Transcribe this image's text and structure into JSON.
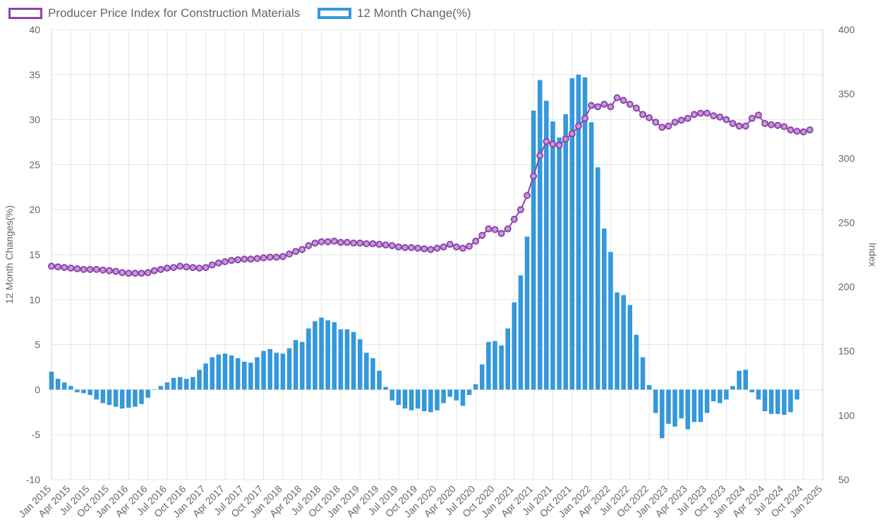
{
  "legend": {
    "line_label": "Producer Price Index for Construction Materials",
    "bar_label": "12 Month Change(%)"
  },
  "chart_data": {
    "type": "bar+line",
    "x_tick_labels": [
      "Jan 2015",
      "Apr 2015",
      "Jul 2015",
      "Oct 2015",
      "Jan 2016",
      "Apr 2016",
      "Jul 2016",
      "Oct 2016",
      "Jan 2017",
      "Apr 2017",
      "Jul 2017",
      "Oct 2017",
      "Jan 2018",
      "Apr 2018",
      "Jul 2018",
      "Oct 2018",
      "Jan 2019",
      "Apr 2019",
      "Jul 2019",
      "Oct 2019",
      "Jan 2020",
      "Apr 2020",
      "Jul 2020",
      "Oct 2020",
      "Jan 2021",
      "Apr 2021",
      "Jul 2021",
      "Oct 2021",
      "Jan 2022",
      "Apr 2022",
      "Jul 2022",
      "Oct 2022",
      "Jan 2023",
      "Apr 2023",
      "Jul 2023",
      "Oct 2023",
      "Jan 2024",
      "Apr 2024",
      "Jul 2024",
      "Oct 2024",
      "Jan 2025"
    ],
    "x_range": [
      "Jan 2015",
      "Jan 2025"
    ],
    "y_left": {
      "label": "12 Month Changes(%)",
      "range": [
        -10,
        40
      ],
      "ticks": [
        "-10",
        "-5",
        "0",
        "5",
        "10",
        "15",
        "20",
        "25",
        "30",
        "35",
        "40"
      ]
    },
    "y_right": {
      "label": "Index",
      "range": [
        50,
        400
      ],
      "ticks": [
        "50",
        "100",
        "150",
        "200",
        "250",
        "300",
        "350",
        "400"
      ]
    },
    "grid": true,
    "legend_position": "top-left",
    "series": [
      {
        "name": "Producer Price Index for Construction Materials",
        "type": "line",
        "axis": "right",
        "color": "#8e44ad",
        "values": [
          216,
          215.5,
          215,
          214.5,
          214,
          213.5,
          213.5,
          213.5,
          213,
          212.5,
          212,
          211,
          210.5,
          210.5,
          210.5,
          211,
          212.5,
          213.5,
          214.5,
          215,
          216,
          215.5,
          215,
          214.5,
          215,
          217,
          218.5,
          219.5,
          220.5,
          221,
          221.5,
          221.5,
          222,
          222.5,
          223,
          223,
          223.5,
          225.5,
          227.5,
          229,
          232,
          234,
          235,
          235,
          235.5,
          234.5,
          234.5,
          234,
          234,
          233.5,
          233.5,
          233,
          232.5,
          232,
          231,
          230.5,
          230.5,
          230,
          229.5,
          229,
          230,
          231,
          233,
          231,
          230,
          231.5,
          235.5,
          240,
          245,
          244.5,
          241.5,
          245,
          252.5,
          260,
          271,
          286,
          302,
          313,
          311,
          310,
          315,
          319,
          325,
          331,
          341,
          340,
          342,
          340,
          347,
          345,
          342,
          339,
          334,
          331.5,
          328,
          324,
          325,
          328,
          329.5,
          331,
          334,
          335,
          335,
          333,
          332,
          330,
          327,
          325,
          325,
          331,
          333.5,
          327,
          326,
          325.5,
          324.5,
          322,
          321,
          320.5,
          322
        ]
      },
      {
        "name": "12 Month Change(%)",
        "type": "bar",
        "axis": "left",
        "color": "#3498db",
        "values": [
          2,
          1.2,
          0.8,
          0.4,
          -0.3,
          -0.4,
          -0.6,
          -1.1,
          -1.5,
          -1.7,
          -1.9,
          -2.1,
          -2.0,
          -1.9,
          -1.6,
          -0.9,
          0,
          0.4,
          0.8,
          1.3,
          1.4,
          1.2,
          1.4,
          2.2,
          2.9,
          3.6,
          3.9,
          4.0,
          3.8,
          3.5,
          3.1,
          3.0,
          3.6,
          4.3,
          4.5,
          4.1,
          4.0,
          4.6,
          5.5,
          5.3,
          6.8,
          7.6,
          8.0,
          7.7,
          7.5,
          6.7,
          6.7,
          6.4,
          5.6,
          4.1,
          3.5,
          2.1,
          0.3,
          -1.2,
          -1.7,
          -2.1,
          -2.3,
          -2.1,
          -2.4,
          -2.5,
          -2.3,
          -1.5,
          -0.8,
          -1.2,
          -1.8,
          -0.6,
          0.6,
          2.8,
          5.3,
          5.4,
          4.9,
          6.8,
          9.7,
          12.7,
          17.0,
          31.0,
          34.4,
          32.1,
          29.8,
          28.0,
          30.6,
          34.6,
          35.0,
          34.7,
          29.7,
          24.7,
          17.9,
          15.3,
          10.8,
          10.5,
          9.4,
          6.1,
          3.6,
          0.5,
          -2.6,
          -5.4,
          -3.8,
          -4.1,
          -3.2,
          -4.4,
          -3.6,
          -3.6,
          -2.6,
          -1.3,
          -1.5,
          -1.1,
          0.4,
          2.1,
          2.2,
          -0.3,
          -1.1,
          -2.4,
          -2.7,
          -2.7,
          -2.8,
          -2.5,
          -1.1
        ]
      }
    ]
  }
}
